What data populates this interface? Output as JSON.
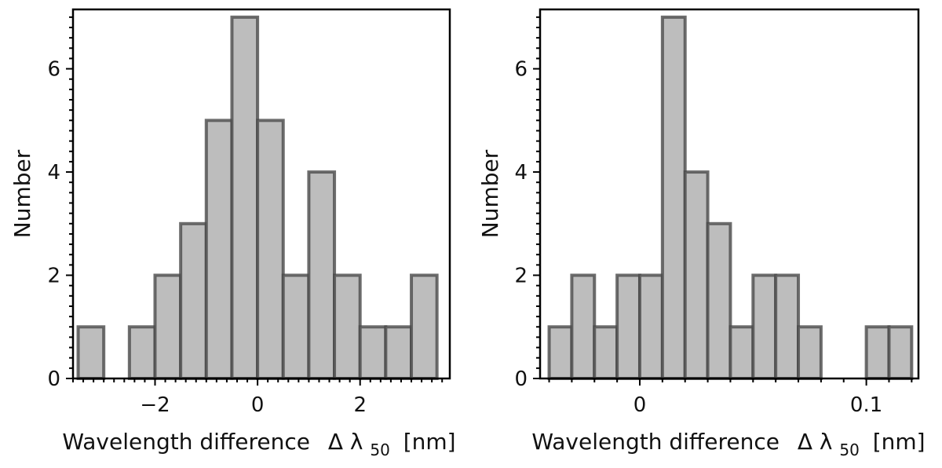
{
  "chart_data": [
    {
      "type": "bar",
      "title": "",
      "xlabel": "Wavelength difference",
      "xlabel_symbol": "Δ λ",
      "xlabel_subscript": "50",
      "xlabel_unit": "[nm]",
      "ylabel": "Number",
      "xlim": [
        -3.6,
        3.75
      ],
      "ylim": [
        0,
        7.15
      ],
      "xticks": [
        -2,
        0,
        2
      ],
      "xtick_labels": [
        "−2",
        "0",
        "2"
      ],
      "yticks": [
        0,
        2,
        4,
        6
      ],
      "ytick_labels": [
        "0",
        "2",
        "4",
        "6"
      ],
      "bin_edges": [
        -3.5,
        -3.0,
        -2.5,
        -2.0,
        -1.5,
        -1.0,
        -0.5,
        0.0,
        0.5,
        1.0,
        1.5,
        2.0,
        2.5,
        3.0,
        3.5
      ],
      "values": [
        1,
        0,
        1,
        2,
        3,
        5,
        7,
        5,
        2,
        4,
        2,
        1,
        1,
        2
      ]
    },
    {
      "type": "bar",
      "title": "",
      "xlabel": "Wavelength difference",
      "xlabel_symbol": "Δ λ",
      "xlabel_subscript": "50",
      "xlabel_unit": "[nm]",
      "ylabel": "Number",
      "xlim": [
        -0.044,
        0.123
      ],
      "ylim": [
        0,
        7.15
      ],
      "xticks": [
        0,
        0.1
      ],
      "xtick_labels": [
        "0",
        "0.1"
      ],
      "yticks": [
        0,
        2,
        4,
        6
      ],
      "ytick_labels": [
        "0",
        "2",
        "4",
        "6"
      ],
      "bin_edges": [
        -0.04,
        -0.03,
        -0.02,
        -0.01,
        0.0,
        0.01,
        0.02,
        0.03,
        0.04,
        0.05,
        0.06,
        0.07,
        0.08,
        0.09,
        0.1,
        0.11,
        0.12
      ],
      "values": [
        1,
        2,
        1,
        2,
        2,
        7,
        4,
        3,
        1,
        2,
        2,
        1,
        0,
        0,
        1,
        1
      ]
    }
  ]
}
